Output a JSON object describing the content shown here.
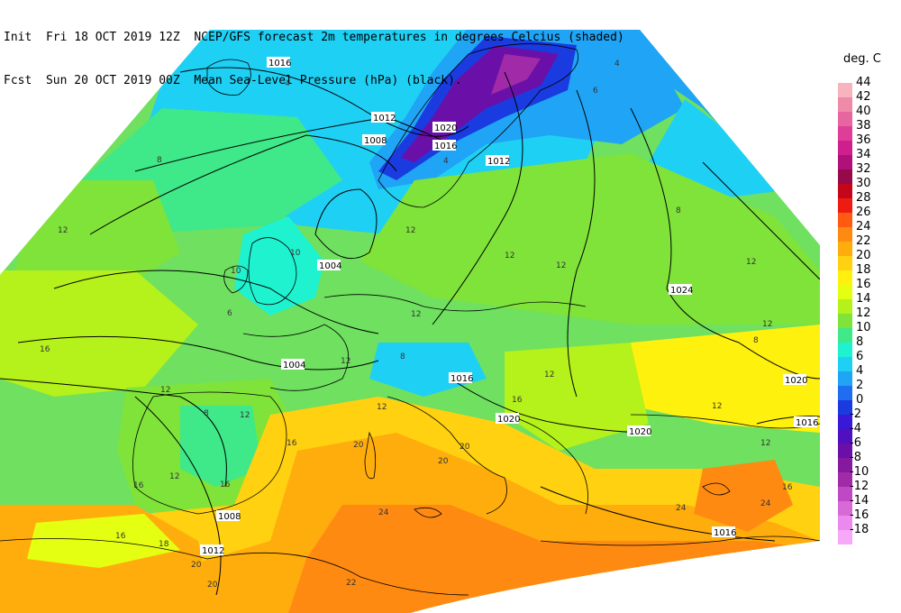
{
  "header": {
    "init_label": "Init",
    "init_time": "Fri 18 OCT 2019 12Z",
    "fcst_label": "Fcst",
    "fcst_time": "Sun 20 OCT 2019 00Z",
    "line1_desc": "NCEP/GFS forecast 2m temperatures in degrees Celcius (shaded)",
    "line2_desc": "Mean Sea-Level Pressure (hPa) (black)."
  },
  "legend": {
    "title": "deg. C",
    "items": [
      {
        "label": "44",
        "color": "#f7b3be"
      },
      {
        "label": "42",
        "color": "#ef8aa8"
      },
      {
        "label": "40",
        "color": "#e766a0"
      },
      {
        "label": "38",
        "color": "#de3d98"
      },
      {
        "label": "36",
        "color": "#cf1f8c"
      },
      {
        "label": "34",
        "color": "#b0107a"
      },
      {
        "label": "32",
        "color": "#960a4a"
      },
      {
        "label": "30",
        "color": "#c4061a"
      },
      {
        "label": "28",
        "color": "#ee1b12"
      },
      {
        "label": "26",
        "color": "#ff5a12"
      },
      {
        "label": "24",
        "color": "#ff8a12"
      },
      {
        "label": "22",
        "color": "#ffad0c"
      },
      {
        "label": "20",
        "color": "#ffd110"
      },
      {
        "label": "18",
        "color": "#fff10e"
      },
      {
        "label": "16",
        "color": "#e5ff12"
      },
      {
        "label": "14",
        "color": "#b5f11a"
      },
      {
        "label": "12",
        "color": "#7fe33a"
      },
      {
        "label": "10",
        "color": "#3fe888"
      },
      {
        "label": "8",
        "color": "#1ef2cf"
      },
      {
        "label": "6",
        "color": "#1fd0f5"
      },
      {
        "label": "4",
        "color": "#20a4f5"
      },
      {
        "label": "2",
        "color": "#1f6ef2"
      },
      {
        "label": "0",
        "color": "#1a3be0"
      },
      {
        "label": "-2",
        "color": "#3a18d8"
      },
      {
        "label": "-4",
        "color": "#5010c0"
      },
      {
        "label": "-6",
        "color": "#6a10a8"
      },
      {
        "label": "-8",
        "color": "#861a9e"
      },
      {
        "label": "-10",
        "color": "#a02aa8"
      },
      {
        "label": "-12",
        "color": "#bf48c4"
      },
      {
        "label": "-14",
        "color": "#d86ad8"
      },
      {
        "label": "-16",
        "color": "#ea8aee"
      },
      {
        "label": "-18",
        "color": "#f7a8f7"
      }
    ]
  },
  "map": {
    "pressure_labels": [
      "1016",
      "1012",
      "1008",
      "1020",
      "1016",
      "1012",
      "1004",
      "1024",
      "1004",
      "1016",
      "1020",
      "1020",
      "1020",
      "1016",
      "1008",
      "1012",
      "1016",
      "1020"
    ],
    "temperature_labels": [
      "4",
      "6",
      "4",
      "8",
      "12",
      "8",
      "12",
      "10",
      "12",
      "12",
      "12",
      "12",
      "12",
      "8",
      "6",
      "12",
      "12",
      "16",
      "12",
      "12",
      "8",
      "12",
      "16",
      "12",
      "12",
      "16",
      "16",
      "20",
      "20",
      "24",
      "20",
      "24",
      "24",
      "16",
      "16",
      "12",
      "18",
      "20",
      "16",
      "20",
      "22",
      "10",
      "4",
      "8"
    ]
  }
}
